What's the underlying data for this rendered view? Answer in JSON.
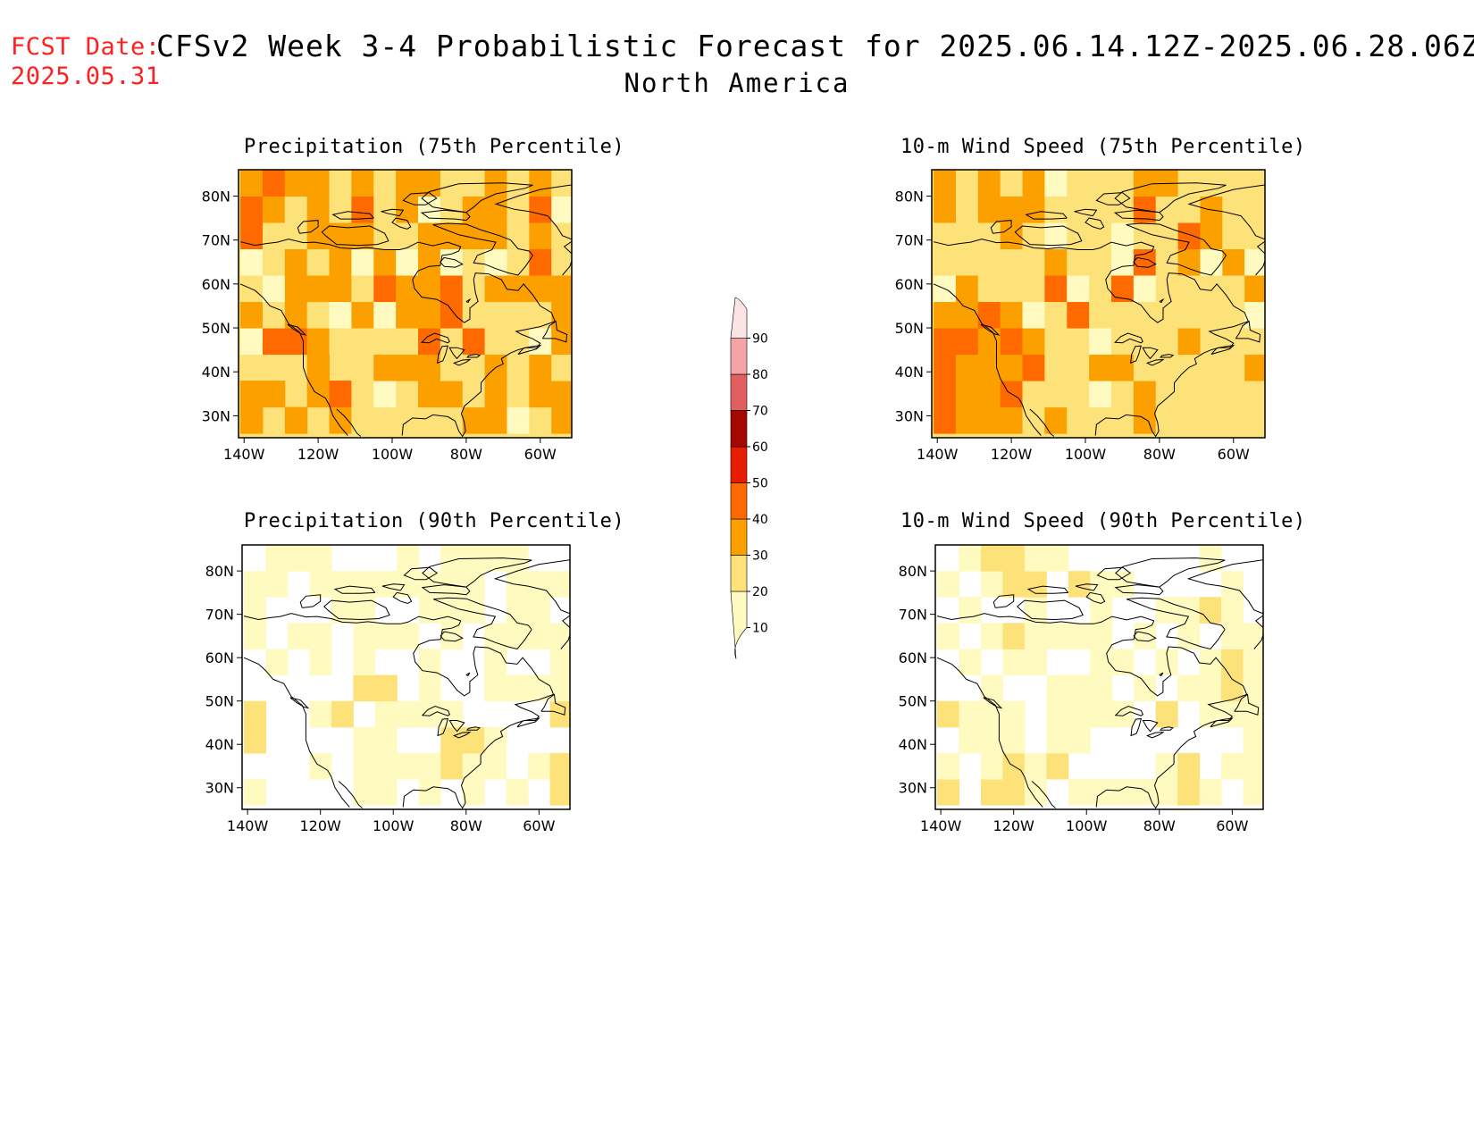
{
  "header": {
    "fcst_label": "FCST Date:",
    "fcst_date": "2025.05.31",
    "title": "CFSv2 Week 3-4 Probabilistic Forecast for 2025.06.14.12Z-2025.06.28.06Z",
    "region": "North America"
  },
  "panels": [
    {
      "title": "Precipitation (75th Percentile)",
      "variable": "precipitation",
      "level": "75th"
    },
    {
      "title": "10-m Wind Speed (75th Percentile)",
      "variable": "wind",
      "level": "75th"
    },
    {
      "title": "Precipitation (90th Percentile)",
      "variable": "precipitation",
      "level": "90th"
    },
    {
      "title": "10-m Wind Speed (90th Percentile)",
      "variable": "wind",
      "level": "90th"
    }
  ],
  "axes": {
    "lat_labels": [
      "80N",
      "70N",
      "60N",
      "50N",
      "40N",
      "30N"
    ],
    "lon_labels": [
      "140W",
      "120W",
      "100W",
      "80W",
      "60W"
    ]
  },
  "colorbar": {
    "labels": [
      "10",
      "20",
      "30",
      "40",
      "50",
      "60",
      "70",
      "80",
      "90"
    ],
    "colors": [
      "#fffac0",
      "#fde27a",
      "#fca000",
      "#ff6a00",
      "#e81c00",
      "#a40800",
      "#e06060",
      "#f4a4a4",
      "#fce4e4"
    ]
  }
}
